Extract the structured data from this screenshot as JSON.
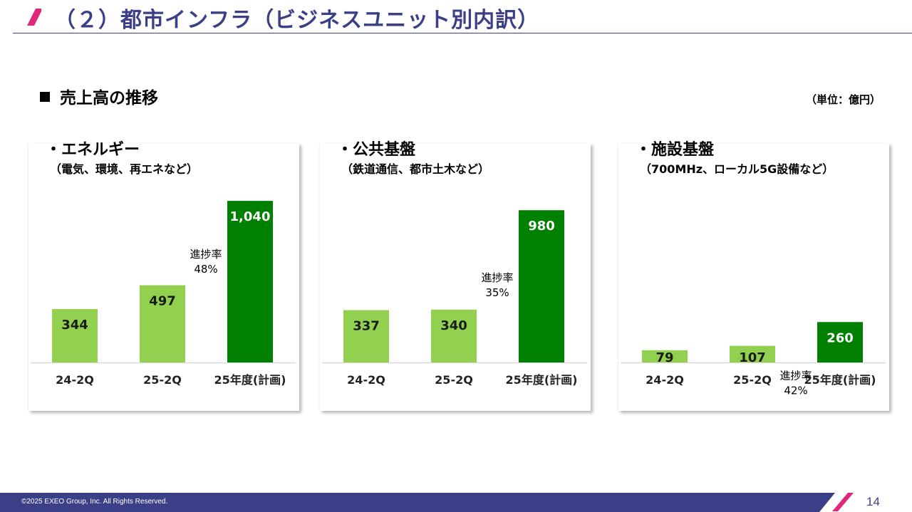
{
  "header": {
    "title": "（２）都市インフラ（ビジネスユニット別内訳）"
  },
  "section": {
    "title": "売上高の推移",
    "unit_note": "（単位：億円）"
  },
  "colors": {
    "accent": "#e0287a",
    "navy": "#3b3f87",
    "bar_light": "#92d050",
    "bar_dark": "#008000"
  },
  "chart_data": [
    {
      "type": "bar",
      "title": "・エネルギー",
      "subtitle": "（電気、環境、再エネなど）",
      "categories": [
        "24-2Q",
        "25-2Q",
        "25年度(計画)"
      ],
      "values": [
        344,
        497,
        1040
      ],
      "value_labels": [
        "344",
        "497",
        "1,040"
      ],
      "progress": {
        "label": "進捗率",
        "value": "48%"
      },
      "ylim": [
        0,
        1100
      ]
    },
    {
      "type": "bar",
      "title": "・公共基盤",
      "subtitle": "（鉄道通信、都市土木など）",
      "categories": [
        "24-2Q",
        "25-2Q",
        "25年度(計画)"
      ],
      "values": [
        337,
        340,
        980
      ],
      "value_labels": [
        "337",
        "340",
        "980"
      ],
      "progress": {
        "label": "進捗率",
        "value": "35%"
      },
      "ylim": [
        0,
        1100
      ]
    },
    {
      "type": "bar",
      "title": "・施設基盤",
      "subtitle": "（700MHz、ローカル5G設備など）",
      "categories": [
        "24-2Q",
        "25-2Q",
        "25年度(計画)"
      ],
      "values": [
        79,
        107,
        260
      ],
      "value_labels": [
        "79",
        "107",
        "260"
      ],
      "progress": {
        "label": "進捗率",
        "value": "42%"
      },
      "ylim": [
        0,
        1100
      ]
    }
  ],
  "footer": {
    "copyright": "©2025 EXEO Group, Inc. All Rights Reserved.",
    "page_number": "14"
  }
}
